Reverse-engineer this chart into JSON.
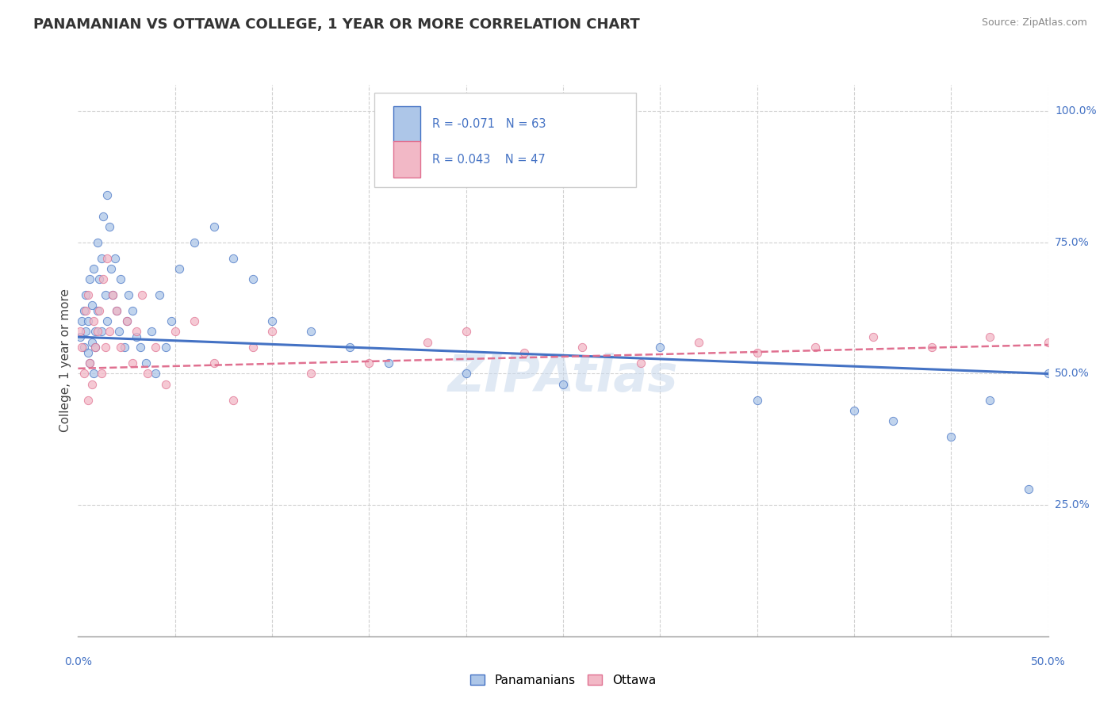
{
  "title": "PANAMANIAN VS OTTAWA COLLEGE, 1 YEAR OR MORE CORRELATION CHART",
  "source_text": "Source: ZipAtlas.com",
  "xmin": 0.0,
  "xmax": 0.5,
  "ymin": 0.0,
  "ymax": 1.05,
  "color_blue": "#adc6e8",
  "color_pink": "#f2b8c6",
  "color_blue_line": "#4472c4",
  "color_pink_line": "#e07090",
  "watermark": "ZIPAtlas",
  "legend_label1": "Panamanians",
  "legend_label2": "Ottawa",
  "legend_r1_val": "-0.071",
  "legend_n1_val": "63",
  "legend_r2_val": "0.043",
  "legend_n2_val": "47",
  "blue_x": [
    0.001,
    0.002,
    0.003,
    0.003,
    0.004,
    0.004,
    0.005,
    0.005,
    0.006,
    0.006,
    0.007,
    0.007,
    0.008,
    0.008,
    0.009,
    0.009,
    0.01,
    0.01,
    0.011,
    0.012,
    0.012,
    0.013,
    0.014,
    0.015,
    0.015,
    0.016,
    0.017,
    0.018,
    0.019,
    0.02,
    0.021,
    0.022,
    0.024,
    0.025,
    0.026,
    0.028,
    0.03,
    0.032,
    0.035,
    0.038,
    0.04,
    0.042,
    0.045,
    0.048,
    0.052,
    0.06,
    0.07,
    0.08,
    0.09,
    0.1,
    0.12,
    0.14,
    0.16,
    0.2,
    0.25,
    0.3,
    0.35,
    0.4,
    0.42,
    0.45,
    0.47,
    0.49,
    0.5
  ],
  "blue_y": [
    0.57,
    0.6,
    0.55,
    0.62,
    0.58,
    0.65,
    0.54,
    0.6,
    0.52,
    0.68,
    0.56,
    0.63,
    0.5,
    0.7,
    0.58,
    0.55,
    0.75,
    0.62,
    0.68,
    0.72,
    0.58,
    0.8,
    0.65,
    0.84,
    0.6,
    0.78,
    0.7,
    0.65,
    0.72,
    0.62,
    0.58,
    0.68,
    0.55,
    0.6,
    0.65,
    0.62,
    0.57,
    0.55,
    0.52,
    0.58,
    0.5,
    0.65,
    0.55,
    0.6,
    0.7,
    0.75,
    0.78,
    0.72,
    0.68,
    0.6,
    0.58,
    0.55,
    0.52,
    0.5,
    0.48,
    0.55,
    0.45,
    0.43,
    0.41,
    0.38,
    0.45,
    0.28,
    0.5
  ],
  "pink_x": [
    0.001,
    0.002,
    0.003,
    0.004,
    0.005,
    0.005,
    0.006,
    0.007,
    0.008,
    0.009,
    0.01,
    0.011,
    0.012,
    0.013,
    0.014,
    0.015,
    0.016,
    0.018,
    0.02,
    0.022,
    0.025,
    0.028,
    0.03,
    0.033,
    0.036,
    0.04,
    0.045,
    0.05,
    0.06,
    0.07,
    0.08,
    0.09,
    0.1,
    0.12,
    0.15,
    0.18,
    0.2,
    0.23,
    0.26,
    0.29,
    0.32,
    0.35,
    0.38,
    0.41,
    0.44,
    0.47,
    0.5
  ],
  "pink_y": [
    0.58,
    0.55,
    0.5,
    0.62,
    0.45,
    0.65,
    0.52,
    0.48,
    0.6,
    0.55,
    0.58,
    0.62,
    0.5,
    0.68,
    0.55,
    0.72,
    0.58,
    0.65,
    0.62,
    0.55,
    0.6,
    0.52,
    0.58,
    0.65,
    0.5,
    0.55,
    0.48,
    0.58,
    0.6,
    0.52,
    0.45,
    0.55,
    0.58,
    0.5,
    0.52,
    0.56,
    0.58,
    0.54,
    0.55,
    0.52,
    0.56,
    0.54,
    0.55,
    0.57,
    0.55,
    0.57,
    0.56
  ]
}
